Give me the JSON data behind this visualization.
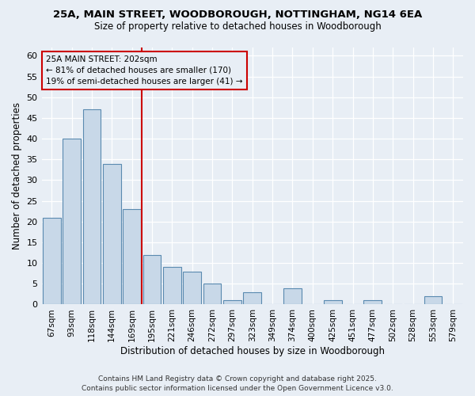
{
  "title_line1": "25A, MAIN STREET, WOODBOROUGH, NOTTINGHAM, NG14 6EA",
  "title_line2": "Size of property relative to detached houses in Woodborough",
  "xlabel": "Distribution of detached houses by size in Woodborough",
  "ylabel": "Number of detached properties",
  "categories": [
    "67sqm",
    "93sqm",
    "118sqm",
    "144sqm",
    "169sqm",
    "195sqm",
    "221sqm",
    "246sqm",
    "272sqm",
    "297sqm",
    "323sqm",
    "349sqm",
    "374sqm",
    "400sqm",
    "425sqm",
    "451sqm",
    "477sqm",
    "502sqm",
    "528sqm",
    "553sqm",
    "579sqm"
  ],
  "values": [
    21,
    40,
    47,
    34,
    23,
    12,
    9,
    8,
    5,
    1,
    3,
    0,
    4,
    0,
    1,
    0,
    1,
    0,
    0,
    2,
    0
  ],
  "bar_color": "#c8d8e8",
  "bar_edge_color": "#5a8ab0",
  "background_color": "#e8eef5",
  "grid_color": "#ffffff",
  "ylim": [
    0,
    62
  ],
  "yticks": [
    0,
    5,
    10,
    15,
    20,
    25,
    30,
    35,
    40,
    45,
    50,
    55,
    60
  ],
  "ref_line_x": 4.5,
  "ref_line_color": "#cc0000",
  "annotation_text": "25A MAIN STREET: 202sqm\n← 81% of detached houses are smaller (170)\n19% of semi-detached houses are larger (41) →",
  "annotation_box_color": "#cc0000",
  "footer_line1": "Contains HM Land Registry data © Crown copyright and database right 2025.",
  "footer_line2": "Contains public sector information licensed under the Open Government Licence v3.0."
}
